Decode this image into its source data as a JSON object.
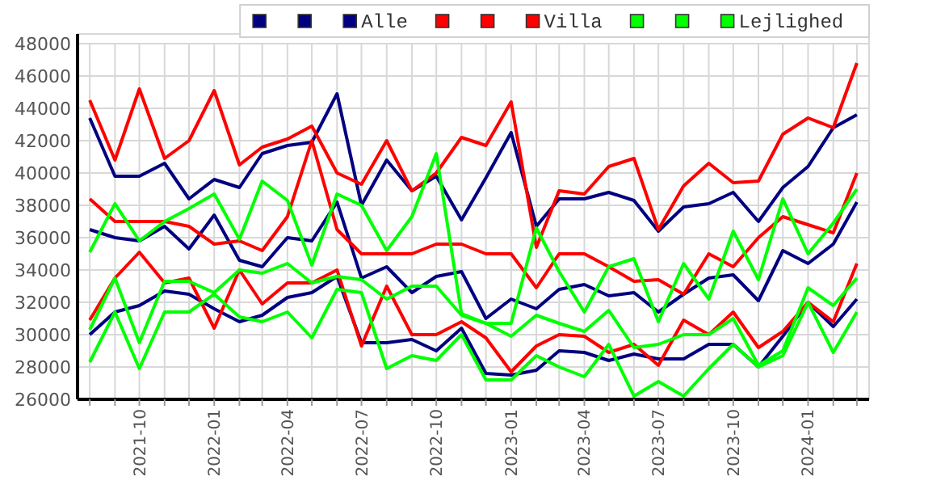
{
  "chart_data": {
    "type": "line",
    "x": [
      "2021-08",
      "2021-09",
      "2021-10",
      "2021-11",
      "2021-12",
      "2022-01",
      "2022-02",
      "2022-03",
      "2022-04",
      "2022-05",
      "2022-06",
      "2022-07",
      "2022-08",
      "2022-09",
      "2022-10",
      "2022-11",
      "2022-12",
      "2023-01",
      "2023-02",
      "2023-03",
      "2023-04",
      "2023-05",
      "2023-06",
      "2023-07",
      "2023-08",
      "2023-09",
      "2023-10",
      "2023-11",
      "2023-12",
      "2024-01",
      "2024-02",
      "2024-03"
    ],
    "series": [
      {
        "color": "#000080",
        "values": [
          43400,
          39800,
          39800,
          40600,
          38400,
          39600,
          39100,
          41200,
          41700,
          41900,
          44900,
          38000,
          40800,
          38900,
          39800,
          37100,
          39700,
          42500,
          36700,
          38400,
          38400,
          38800,
          38300,
          36400,
          37900,
          38100,
          38800,
          37000,
          39100,
          40400,
          42800,
          43600
        ]
      },
      {
        "color": "#000080",
        "values": [
          36500,
          36000,
          35800,
          36700,
          35300,
          37400,
          34600,
          34200,
          36000,
          35800,
          38200,
          33500,
          34200,
          32600,
          33600,
          33900,
          31000,
          32200,
          31600,
          32800,
          33100,
          32400,
          32600,
          31400,
          32500,
          33500,
          33700,
          32100,
          35200,
          34400,
          35600,
          38200
        ]
      },
      {
        "name": "Alle",
        "color": "#000080",
        "values": [
          30000,
          31400,
          31800,
          32700,
          32500,
          31600,
          30800,
          31200,
          32300,
          32600,
          33600,
          29500,
          29500,
          29700,
          29000,
          30400,
          27600,
          27500,
          27800,
          29000,
          28900,
          28400,
          28800,
          28500,
          28500,
          29400,
          29400,
          28000,
          29900,
          32000,
          30500,
          32200
        ]
      },
      {
        "color": "#ff0000",
        "values": [
          44500,
          40800,
          45200,
          40900,
          42000,
          45100,
          40500,
          41600,
          42100,
          42900,
          40000,
          39300,
          42000,
          38900,
          40000,
          42200,
          41700,
          44400,
          35400,
          38900,
          38700,
          40400,
          40900,
          36500,
          39200,
          40600,
          39400,
          39500,
          42400,
          43400,
          42800,
          46800
        ]
      },
      {
        "color": "#ff0000",
        "values": [
          38400,
          37000,
          37000,
          37000,
          36700,
          35600,
          35800,
          35200,
          37300,
          42000,
          36500,
          35000,
          35000,
          35000,
          35600,
          35600,
          35000,
          35000,
          32900,
          35000,
          35000,
          34200,
          33300,
          33400,
          32500,
          35000,
          34200,
          36000,
          37300,
          36800,
          36300,
          40000
        ]
      },
      {
        "name": "Villa",
        "color": "#ff0000",
        "values": [
          30900,
          33500,
          35100,
          33200,
          33500,
          30400,
          34000,
          31900,
          33200,
          33200,
          34000,
          29300,
          33000,
          30000,
          30000,
          30800,
          29800,
          27700,
          29300,
          30000,
          29900,
          28900,
          29400,
          28100,
          30900,
          30000,
          31400,
          29200,
          30200,
          32000,
          30800,
          34400
        ]
      },
      {
        "color": "#00ff00",
        "values": [
          35100,
          38100,
          35800,
          37000,
          37800,
          38700,
          35900,
          39500,
          38300,
          34300,
          38700,
          38000,
          35200,
          37300,
          41200,
          31300,
          30700,
          30700,
          36600,
          33900,
          31400,
          34200,
          34700,
          30800,
          34400,
          32200,
          36400,
          33400,
          38400,
          35000,
          36900,
          39000
        ]
      },
      {
        "color": "#00ff00",
        "values": [
          30300,
          33500,
          29500,
          33300,
          33300,
          32600,
          34000,
          33800,
          34400,
          33200,
          33600,
          33400,
          32200,
          33000,
          33000,
          31200,
          30700,
          29900,
          31200,
          30700,
          30200,
          31500,
          29200,
          29400,
          30000,
          30000,
          31000,
          28100,
          29000,
          32900,
          31800,
          33500
        ]
      },
      {
        "name": "Lejlighed",
        "color": "#00ff00",
        "values": [
          28300,
          31400,
          27900,
          31400,
          31400,
          32500,
          31100,
          30800,
          31400,
          29800,
          32800,
          32600,
          27900,
          28700,
          28400,
          30000,
          27200,
          27200,
          28700,
          28000,
          27400,
          29400,
          26200,
          27100,
          26200,
          27900,
          29400,
          28000,
          28700,
          32000,
          28900,
          31400
        ]
      }
    ],
    "xlim": [
      "2021-07-17",
      "2024-03-16"
    ],
    "xticks": [
      {
        "value": "2021-08",
        "label": null
      },
      {
        "value": "2021-09",
        "label": null
      },
      {
        "value": "2021-10",
        "label": "2021-10"
      },
      {
        "value": "2021-11",
        "label": null
      },
      {
        "value": "2021-12",
        "label": null
      },
      {
        "value": "2022-01",
        "label": "2022-01"
      },
      {
        "value": "2022-02",
        "label": null
      },
      {
        "value": "2022-03",
        "label": null
      },
      {
        "value": "2022-04",
        "label": "2022-04"
      },
      {
        "value": "2022-05",
        "label": null
      },
      {
        "value": "2022-06",
        "label": null
      },
      {
        "value": "2022-07",
        "label": "2022-07"
      },
      {
        "value": "2022-08",
        "label": null
      },
      {
        "value": "2022-09",
        "label": null
      },
      {
        "value": "2022-10",
        "label": "2022-10"
      },
      {
        "value": "2022-11",
        "label": null
      },
      {
        "value": "2022-12",
        "label": null
      },
      {
        "value": "2023-01",
        "label": "2023-01"
      },
      {
        "value": "2023-02",
        "label": null
      },
      {
        "value": "2023-03",
        "label": null
      },
      {
        "value": "2023-04",
        "label": "2023-04"
      },
      {
        "value": "2023-05",
        "label": null
      },
      {
        "value": "2023-06",
        "label": null
      },
      {
        "value": "2023-07",
        "label": "2023-07"
      },
      {
        "value": "2023-08",
        "label": null
      },
      {
        "value": "2023-09",
        "label": null
      },
      {
        "value": "2023-10",
        "label": "2023-10"
      },
      {
        "value": "2023-11",
        "label": null
      },
      {
        "value": "2023-12",
        "label": null
      },
      {
        "value": "2024-01",
        "label": "2024-01"
      },
      {
        "value": "2024-02",
        "label": null
      },
      {
        "value": "2024-03",
        "label": null
      }
    ],
    "ylim": [
      26000,
      48000
    ],
    "yticks": [
      26000,
      28000,
      30000,
      32000,
      34000,
      36000,
      38000,
      40000,
      42000,
      44000,
      46000,
      48000
    ],
    "grid": true,
    "legend": "top right",
    "marker": "none",
    "line_style": "solid"
  }
}
